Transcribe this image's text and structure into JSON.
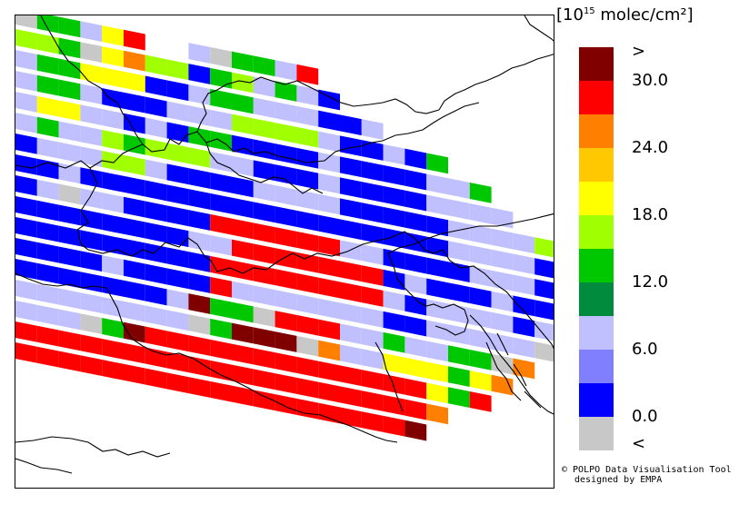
{
  "legend": {
    "title_prefix": "[10",
    "title_exp": "15",
    "title_suffix": " molec/cm²]",
    "labels": [
      ">",
      "30.0",
      "24.0",
      "18.0",
      "12.0",
      "6.0",
      "0.0",
      "<"
    ],
    "colors": [
      "#800000",
      "#ff0000",
      "#ff8000",
      "#ffc800",
      "#ffff00",
      "#a0ff00",
      "#00c800",
      "#008c3c",
      "#c0c0ff",
      "#8080ff",
      "#0000ff",
      "#c8c8c8"
    ]
  },
  "credit": {
    "line1": "© POLPO Data Visualisation Tool",
    "line2": "designed by EMPA"
  },
  "rows": [
    "SGGLYR00LSGGLR",
    "CCGSYOCCBGCLGLB",
    "LGGYYYBBLGGLLLBBL",
    "LGGLBBBLLLCCCCLBBLBG",
    "LYYLLBLBGGBBBBLBBBBLLG",
    "LGLLCGCCCLLBBBLBBBBLLLL",
    "BLLLCCLBBBBLLLLBBBBBLLLLC",
    "BBLBBBBBBBBBBBBBBBBBLLLLB",
    "BLSLLBBBBRRRRRRLLBBBBLLLB",
    "BBBBBBBBLLRRRRRRRBLBBBLBBB",
    "BBBBBBBBBRRRRRRRRLBLLLLBLB",
    "BBBBLBBBBRLLLLLLLBBLLLLLSS",
    "BBBBBBBLDGGSRRRLLGLLGGSO",
    "LLLLLLLLSGDDDSOLLYYYGYO",
    "LLLSGDRRRRRRRRRRRRRYGR",
    "RRRRRRRRRRRRRRRRRRRO",
    "RRRRRRRRRRRRRRRRRRD"
  ]
}
